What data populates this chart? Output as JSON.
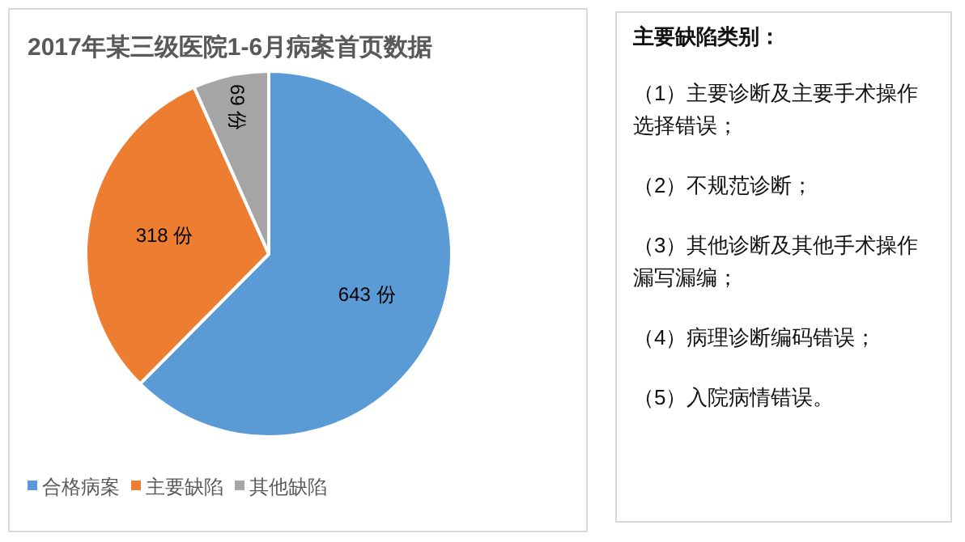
{
  "chart_data": [
    {
      "type": "pie",
      "title": "2017年某三级医院1-6月病案首页数据",
      "categories": [
        "合格病案",
        "主要缺陷",
        "其他缺陷"
      ],
      "values": [
        643,
        318,
        69
      ],
      "value_labels": [
        "643 份",
        "318 份",
        "69 份"
      ],
      "colors": [
        "#5b9bd5",
        "#ed7d31",
        "#a5a5a5"
      ],
      "legend": "bottom"
    },
    {
      "type": "other",
      "title": "主要缺陷类别：",
      "annotations": [
        "（1）主要诊断及主要手术操作选择错误；",
        "（2）不规范诊断；",
        "（3）其他诊断及其他手术操作漏写漏编；",
        "（4）病理诊断编码错误；",
        "（5）入院病情错误。"
      ]
    }
  ]
}
